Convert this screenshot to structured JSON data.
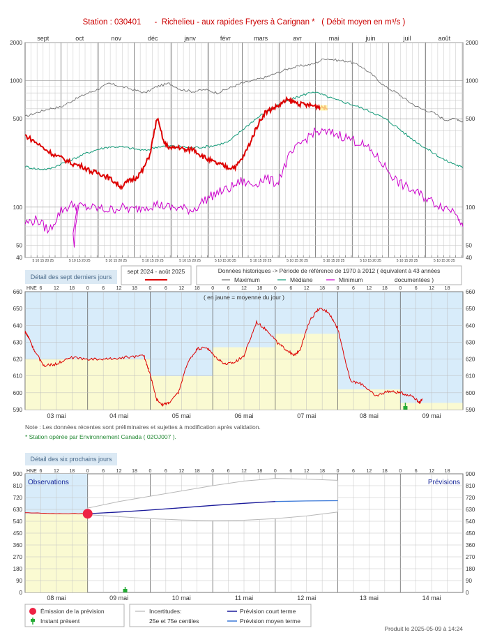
{
  "header": {
    "title": "Station : 030401      -  Richelieu - aux rapides Fryers à Carignan *   ( Débit moyen en m³/s )"
  },
  "colors": {
    "observed": "#dd0000",
    "maximum": "#707070",
    "median": "#119977",
    "minimum": "#cc00cc",
    "band_blue": "#d8ecfa",
    "band_yellow": "#fafad2",
    "forecast_short": "#1a1a9a",
    "forecast_medium": "#3a78d8",
    "uncertainty": "#b8b8b8",
    "emission_dot": "#ee2244",
    "now_marker": "#22aa33"
  },
  "chart_data": [
    {
      "type": "line",
      "id": "annual",
      "scale": "log",
      "ylim": [
        40,
        2000
      ],
      "yticks": [
        40,
        50,
        100,
        500,
        1000,
        2000
      ],
      "months": [
        "sept",
        "oct",
        "nov",
        "déc",
        "janv",
        "févr",
        "mars",
        "avr",
        "mai",
        "juin",
        "juil",
        "août"
      ],
      "day_ticks_label": "5 10 15 20 25",
      "series": [
        {
          "name": "Maximum",
          "x": [
            0,
            10,
            20,
            30,
            40,
            50,
            60,
            70,
            80,
            90,
            100,
            110,
            120,
            130,
            140,
            150,
            160,
            170,
            180,
            190,
            200,
            210,
            220,
            230,
            240,
            250,
            260,
            270,
            280,
            290,
            300,
            310,
            320,
            330,
            340,
            350,
            360,
            365
          ],
          "values": [
            520,
            560,
            600,
            620,
            700,
            780,
            850,
            950,
            900,
            850,
            800,
            900,
            950,
            850,
            820,
            850,
            800,
            870,
            950,
            1000,
            1060,
            1150,
            1250,
            1310,
            1350,
            1500,
            1450,
            1420,
            1300,
            1100,
            900,
            800,
            680,
            600,
            560,
            490,
            500,
            470
          ]
        },
        {
          "name": "Médiane",
          "x": [
            0,
            10,
            20,
            30,
            40,
            50,
            60,
            70,
            80,
            90,
            100,
            110,
            120,
            130,
            140,
            150,
            160,
            170,
            180,
            190,
            200,
            210,
            220,
            230,
            240,
            250,
            260,
            270,
            280,
            290,
            300,
            310,
            320,
            330,
            340,
            350,
            360,
            365
          ],
          "values": [
            210,
            200,
            200,
            220,
            240,
            265,
            285,
            300,
            300,
            290,
            280,
            300,
            305,
            300,
            295,
            300,
            310,
            330,
            400,
            480,
            560,
            640,
            700,
            760,
            820,
            760,
            700,
            660,
            610,
            560,
            500,
            430,
            360,
            310,
            270,
            235,
            215,
            205
          ]
        },
        {
          "name": "Minimum",
          "x": [
            0,
            10,
            20,
            30,
            40,
            50,
            60,
            70,
            80,
            90,
            100,
            110,
            120,
            130,
            140,
            150,
            160,
            170,
            180,
            190,
            200,
            210,
            220,
            230,
            240,
            250,
            260,
            270,
            280,
            290,
            300,
            310,
            320,
            330,
            340,
            350,
            360,
            365
          ],
          "values": [
            75,
            80,
            65,
            95,
            105,
            100,
            98,
            95,
            100,
            95,
            102,
            105,
            100,
            98,
            95,
            115,
            130,
            140,
            160,
            150,
            170,
            155,
            250,
            320,
            390,
            390,
            380,
            350,
            320,
            270,
            210,
            160,
            140,
            125,
            110,
            100,
            92,
            70
          ]
        },
        {
          "name": "sept 2024 - août 2025",
          "x": [
            0,
            8,
            16,
            24,
            32,
            40,
            48,
            56,
            62,
            68,
            74,
            80,
            86,
            92,
            98,
            104,
            110,
            116,
            122,
            128,
            134,
            140,
            146,
            152,
            158,
            164,
            170,
            176,
            182,
            188,
            194,
            200,
            206,
            212,
            218,
            224,
            230,
            236,
            242,
            248,
            252
          ],
          "values": [
            370,
            330,
            290,
            260,
            240,
            220,
            210,
            190,
            185,
            175,
            160,
            145,
            160,
            170,
            195,
            260,
            510,
            320,
            290,
            300,
            280,
            290,
            260,
            240,
            225,
            215,
            205,
            210,
            250,
            330,
            450,
            560,
            600,
            640,
            700,
            680,
            650,
            640,
            630,
            620,
            600
          ]
        }
      ]
    },
    {
      "type": "line",
      "id": "seven_days",
      "ylabel": "HNE",
      "ylim": [
        590,
        660
      ],
      "yticks": [
        590,
        600,
        610,
        620,
        630,
        640,
        650,
        660
      ],
      "hour_ticks": [
        "6",
        "12",
        "18",
        "0"
      ],
      "xlabels": [
        "03 mai",
        "04 mai",
        "05 mai",
        "06 mai",
        "07 mai",
        "08 mai",
        "09 mai"
      ],
      "annotation": "( en jaune = moyenne du jour )",
      "daily_mean": [
        620,
        620,
        610,
        627,
        635,
        602,
        594
      ],
      "series": [
        {
          "name": "Débit",
          "x": [
            0,
            0.05,
            0.15,
            0.3,
            0.5,
            0.7,
            1.0,
            1.3,
            1.6,
            1.9,
            2.0,
            2.1,
            2.2,
            2.3,
            2.45,
            2.6,
            2.75,
            2.9,
            3.05,
            3.2,
            3.35,
            3.5,
            3.7,
            3.9,
            4.05,
            4.2,
            4.3,
            4.4,
            4.55,
            4.7,
            4.85,
            5.0,
            5.2,
            5.4,
            5.6,
            5.8,
            6.0,
            6.2,
            6.3,
            6.35
          ],
          "values": [
            636,
            633,
            625,
            616,
            617,
            621,
            620,
            620,
            621,
            622,
            611,
            596,
            593,
            594,
            600,
            618,
            626,
            627,
            621,
            617,
            618,
            622,
            642,
            636,
            629,
            625,
            622,
            626,
            643,
            650,
            648,
            638,
            607,
            605,
            598,
            601,
            600,
            598,
            594,
            596
          ]
        }
      ]
    },
    {
      "type": "line",
      "id": "forecast",
      "ylabel": "HNE",
      "ylim": [
        0,
        900
      ],
      "yticks": [
        0,
        90,
        180,
        270,
        360,
        450,
        540,
        630,
        720,
        810,
        900
      ],
      "hour_ticks": [
        "6",
        "12",
        "18",
        "0"
      ],
      "xlabels": [
        "08 mai",
        "09 mai",
        "10 mai",
        "11 mai",
        "12 mai",
        "13 mai",
        "14 mai"
      ],
      "section_left": "Observations",
      "section_right": "Prévisions",
      "daily_mean": [
        595
      ],
      "series": [
        {
          "name": "Observations",
          "x": [
            0,
            0.5,
            1.0
          ],
          "values": [
            605,
            598,
            597
          ]
        },
        {
          "name": "Prévision court terme",
          "x": [
            1.0,
            1.5,
            2.0,
            2.5,
            3.0,
            3.5,
            4.0
          ],
          "values": [
            597,
            610,
            625,
            642,
            660,
            676,
            690
          ]
        },
        {
          "name": "Prévision moyen terme",
          "x": [
            4.0,
            4.5,
            5.0
          ],
          "values": [
            690,
            694,
            696
          ]
        },
        {
          "name": "Incertitudes 25e centile",
          "x": [
            1.0,
            1.5,
            2.0,
            2.5,
            3.0,
            3.5,
            4.0,
            4.5,
            5.0
          ],
          "values": [
            590,
            575,
            560,
            550,
            545,
            548,
            560,
            580,
            610
          ]
        },
        {
          "name": "Incertitudes 75e centile",
          "x": [
            1.0,
            1.5,
            2.0,
            2.5,
            3.0,
            3.5,
            4.0,
            4.5,
            5.0
          ],
          "values": [
            640,
            690,
            730,
            770,
            810,
            845,
            865,
            860,
            850
          ]
        }
      ],
      "emission_value": 597,
      "now_day": 1.6
    }
  ],
  "annual_legend": {
    "section_label": "Détail des sept derniers jours",
    "period_label": "sept 2024 - août 2025",
    "historical_title": "Données historiques -> Période de référence  de 1970 à 2012   ( équivalent à 43 années",
    "historical_title2": "documentées )",
    "maximum": "Maximum",
    "median": "Médiane",
    "minimum": "Minimum"
  },
  "notes": {
    "note1": "Note : Les données récentes sont préliminaires et sujettes à modification après validation.",
    "note2": "* Station opérée par Environnement Canada ( 02OJ007 )."
  },
  "forecast_section_label": "Détail des six prochains jours",
  "forecast_legend": {
    "emission": "Émission de la prévision",
    "now": "Instant présent",
    "uncertainty": "Incertitudes:",
    "uncertainty2": "25e et 75e centiles",
    "short_term": "Prévision court terme",
    "medium_term": "Prévision moyen terme"
  },
  "footer": {
    "produced": "Produit le 2025-05-09 à 14:24"
  }
}
